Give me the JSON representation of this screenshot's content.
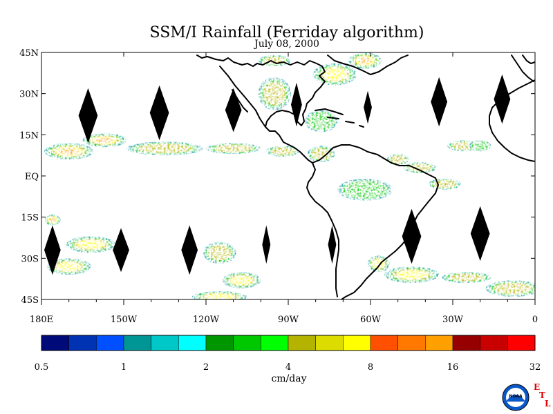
{
  "chart_data": {
    "type": "heatmap",
    "title": "SSM/I Rainfall (Ferriday algorithm)",
    "subtitle": "July 08, 2000",
    "units": "cm/day",
    "lon_range": [
      -180,
      0
    ],
    "lat_range": [
      -45,
      45
    ],
    "lat_ticks": [
      {
        "value": 45,
        "label": "45N"
      },
      {
        "value": 30,
        "label": "30N"
      },
      {
        "value": 15,
        "label": "15N"
      },
      {
        "value": 0,
        "label": "EQ"
      },
      {
        "value": -15,
        "label": "15S"
      },
      {
        "value": -30,
        "label": "30S"
      },
      {
        "value": -45,
        "label": "45S"
      }
    ],
    "lon_ticks": [
      {
        "value": -180,
        "label": "180E"
      },
      {
        "value": -150,
        "label": "150W"
      },
      {
        "value": -120,
        "label": "120W"
      },
      {
        "value": -90,
        "label": "90W"
      },
      {
        "value": -60,
        "label": "60W"
      },
      {
        "value": -30,
        "label": "30W"
      },
      {
        "value": 0,
        "label": "0"
      }
    ],
    "colorbar": {
      "colors": [
        "#000a78",
        "#0032b4",
        "#0050ff",
        "#009696",
        "#00c8c8",
        "#00ffff",
        "#009600",
        "#00c800",
        "#00ff00",
        "#b4b400",
        "#dcdc00",
        "#ffff00",
        "#ff5000",
        "#ff7800",
        "#ffa000",
        "#960000",
        "#c80000",
        "#ff0000"
      ],
      "labels": [
        {
          "value": 0.5,
          "label": "0.5"
        },
        {
          "value": 1,
          "label": "1"
        },
        {
          "value": 2,
          "label": "2"
        },
        {
          "value": 4,
          "label": "4"
        },
        {
          "value": 8,
          "label": "8"
        },
        {
          "value": 16,
          "label": "16"
        },
        {
          "value": 32,
          "label": "32"
        }
      ]
    },
    "rain_regions": [
      {
        "lon": -170,
        "lat": 9,
        "rx": 9,
        "ry": 3,
        "intensity": 0.85
      },
      {
        "lon": -157,
        "lat": 13,
        "rx": 8,
        "ry": 2.5,
        "intensity": 0.75
      },
      {
        "lon": -135,
        "lat": 10,
        "rx": 14,
        "ry": 2.5,
        "intensity": 0.55
      },
      {
        "lon": -110,
        "lat": 10,
        "rx": 10,
        "ry": 2,
        "intensity": 0.55
      },
      {
        "lon": -92,
        "lat": 9,
        "rx": 6,
        "ry": 2,
        "intensity": 0.45
      },
      {
        "lon": -78,
        "lat": 8,
        "rx": 5,
        "ry": 3,
        "intensity": 0.5
      },
      {
        "lon": -95,
        "lat": 30,
        "rx": 6,
        "ry": 6,
        "intensity": 0.45
      },
      {
        "lon": -73,
        "lat": 37,
        "rx": 8,
        "ry": 4,
        "intensity": 0.65
      },
      {
        "lon": -62,
        "lat": 42,
        "rx": 6,
        "ry": 3,
        "intensity": 0.75
      },
      {
        "lon": -95,
        "lat": 42,
        "rx": 6,
        "ry": 2,
        "intensity": 0.45
      },
      {
        "lon": -78,
        "lat": 20,
        "rx": 6,
        "ry": 4,
        "intensity": 0.4
      },
      {
        "lon": -26,
        "lat": 11,
        "rx": 6,
        "ry": 2,
        "intensity": 0.5
      },
      {
        "lon": -42,
        "lat": 3,
        "rx": 6,
        "ry": 2,
        "intensity": 0.55
      },
      {
        "lon": -33,
        "lat": -3,
        "rx": 6,
        "ry": 2,
        "intensity": 0.55
      },
      {
        "lon": -62,
        "lat": -5,
        "rx": 10,
        "ry": 4,
        "intensity": 0.35
      },
      {
        "lon": -50,
        "lat": 6,
        "rx": 4,
        "ry": 2,
        "intensity": 0.45
      },
      {
        "lon": -176,
        "lat": -16,
        "rx": 3,
        "ry": 2,
        "intensity": 0.8
      },
      {
        "lon": -162,
        "lat": -25,
        "rx": 9,
        "ry": 3,
        "intensity": 0.6
      },
      {
        "lon": -170,
        "lat": -33,
        "rx": 8,
        "ry": 3,
        "intensity": 0.7
      },
      {
        "lon": -115,
        "lat": -28,
        "rx": 6,
        "ry": 4,
        "intensity": 0.55
      },
      {
        "lon": -107,
        "lat": -38,
        "rx": 7,
        "ry": 3,
        "intensity": 0.7
      },
      {
        "lon": -115,
        "lat": -44,
        "rx": 10,
        "ry": 2,
        "intensity": 0.65
      },
      {
        "lon": -57,
        "lat": -32,
        "rx": 4,
        "ry": 3,
        "intensity": 0.65
      },
      {
        "lon": -45,
        "lat": -36,
        "rx": 10,
        "ry": 3,
        "intensity": 0.65
      },
      {
        "lon": -25,
        "lat": -37,
        "rx": 9,
        "ry": 2,
        "intensity": 0.45
      },
      {
        "lon": -8,
        "lat": -41,
        "rx": 10,
        "ry": 3,
        "intensity": 0.5
      },
      {
        "lon": -20,
        "lat": 11,
        "rx": 4,
        "ry": 2,
        "intensity": 0.4
      }
    ],
    "missing_swath_gaps": [
      {
        "lon": -163,
        "lat": 22,
        "half_width": 3.5,
        "half_height": 10
      },
      {
        "lon": -137,
        "lat": 23,
        "half_width": 3.5,
        "half_height": 10
      },
      {
        "lon": -110,
        "lat": 24,
        "half_width": 3,
        "half_height": 8
      },
      {
        "lon": -87,
        "lat": 26,
        "half_width": 2,
        "half_height": 8
      },
      {
        "lon": -61,
        "lat": 25,
        "half_width": 1.5,
        "half_height": 6
      },
      {
        "lon": -35,
        "lat": 27,
        "half_width": 3,
        "half_height": 9
      },
      {
        "lon": -12,
        "lat": 28,
        "half_width": 3,
        "half_height": 9
      },
      {
        "lon": -176,
        "lat": -27,
        "half_width": 3,
        "half_height": 9
      },
      {
        "lon": -151,
        "lat": -27,
        "half_width": 3,
        "half_height": 8
      },
      {
        "lon": -126,
        "lat": -27,
        "half_width": 3,
        "half_height": 9
      },
      {
        "lon": -98,
        "lat": -25,
        "half_width": 1.5,
        "half_height": 7
      },
      {
        "lon": -74,
        "lat": -25,
        "half_width": 1.5,
        "half_height": 7
      },
      {
        "lon": -45,
        "lat": -22,
        "half_width": 3.5,
        "half_height": 10
      },
      {
        "lon": -20,
        "lat": -21,
        "half_width": 3.5,
        "half_height": 10
      }
    ],
    "grid": false
  },
  "logo": {
    "text": "NOAA",
    "etl_letters": [
      "E",
      "T",
      "L"
    ]
  }
}
